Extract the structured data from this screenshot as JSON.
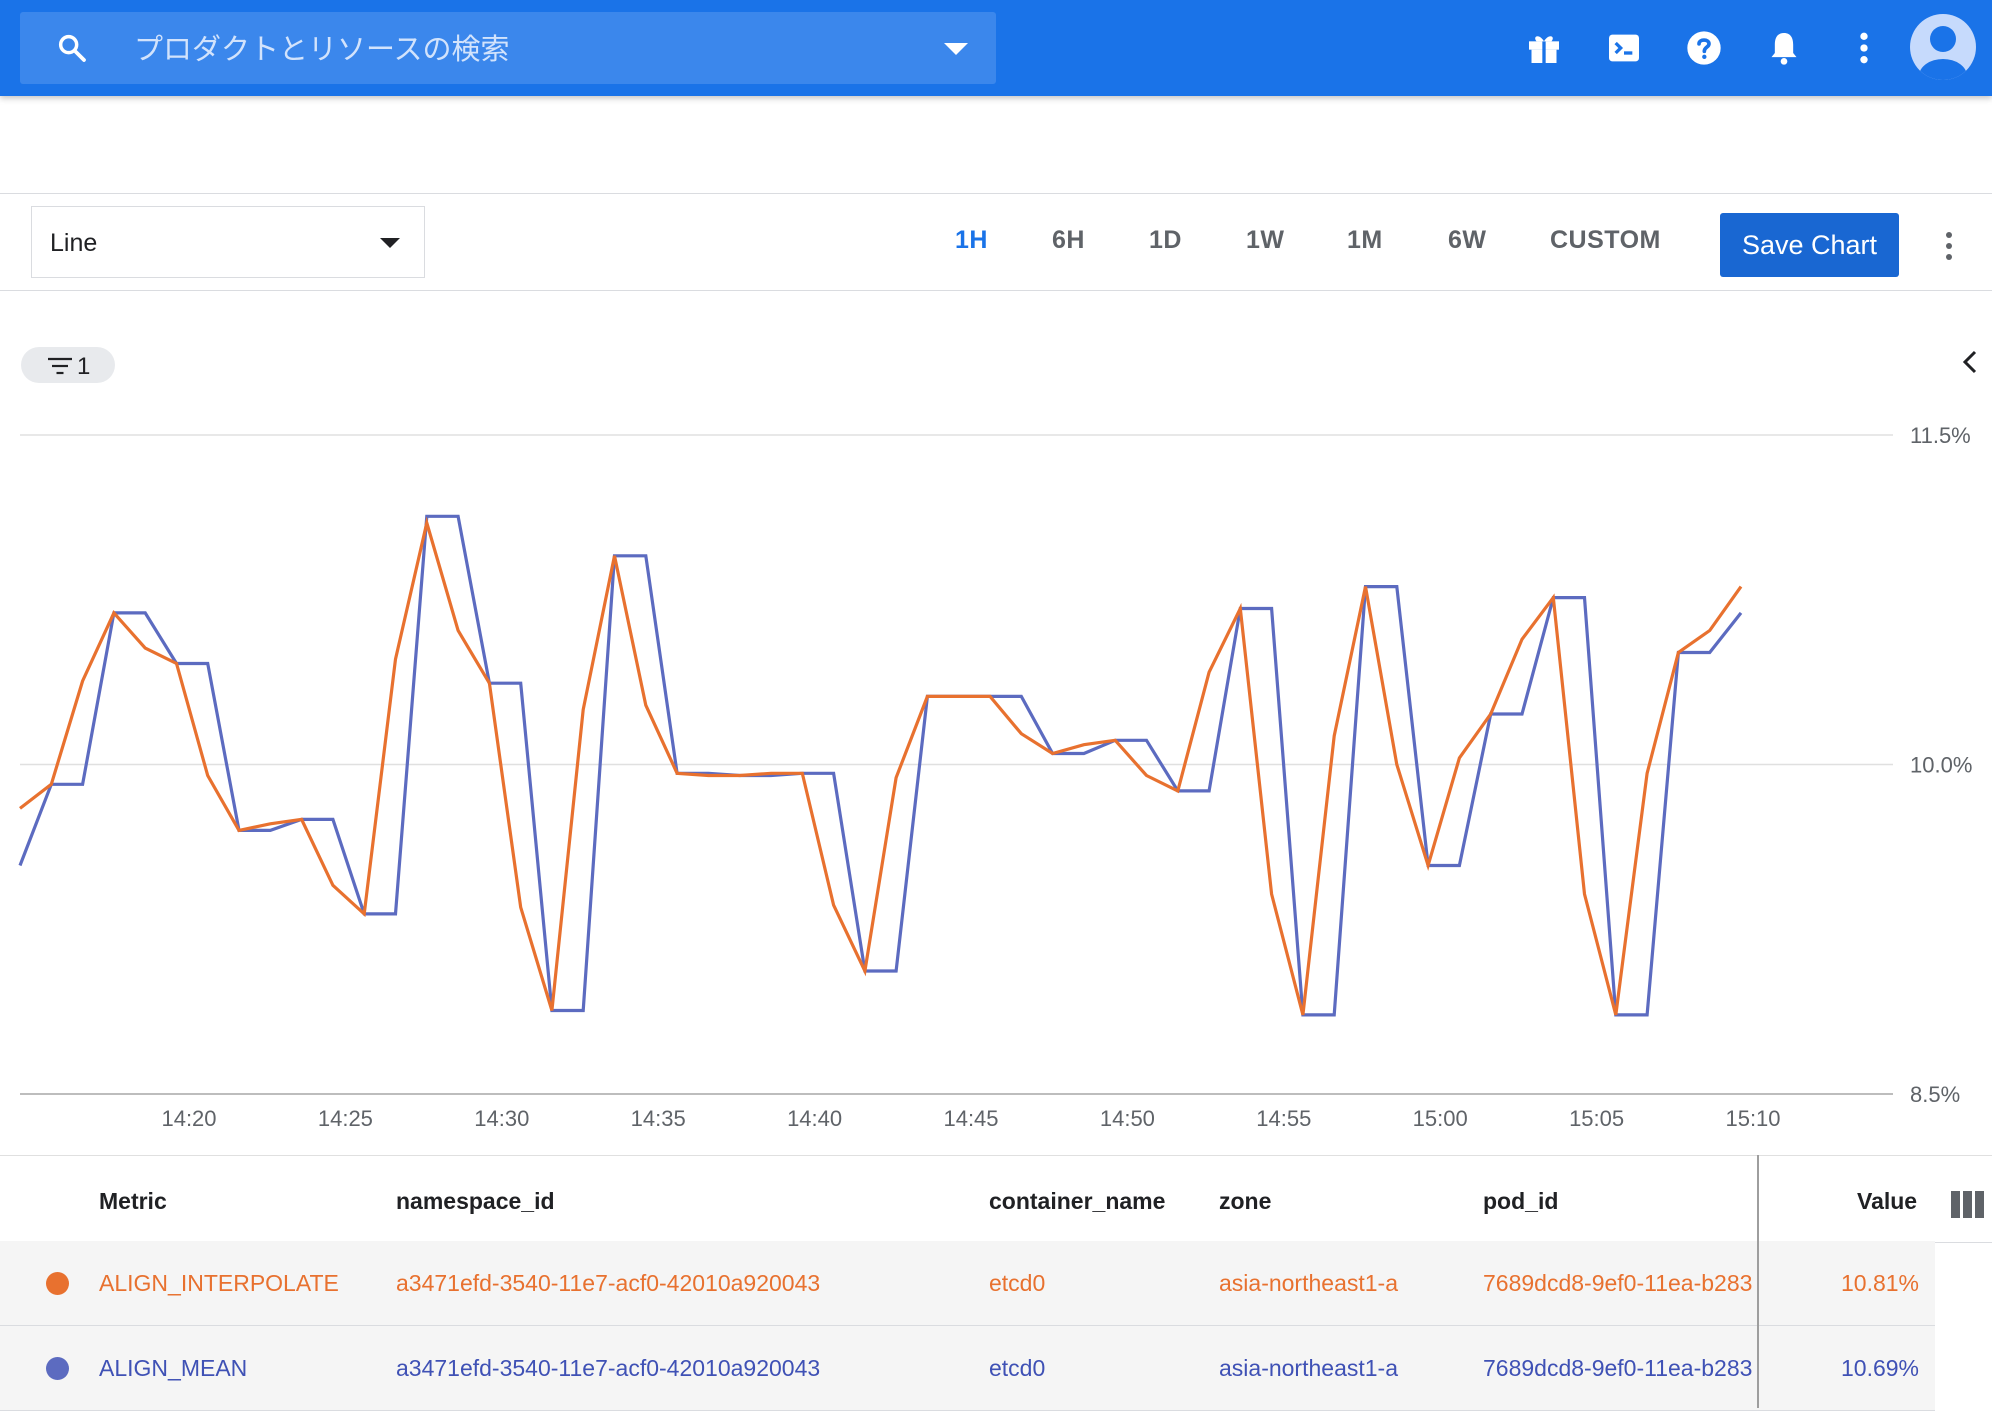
{
  "search": {
    "placeholder": "プロダクトとリソースの検索"
  },
  "topbar_icons": [
    "gift-icon",
    "cloud-shell-icon",
    "help-icon",
    "notifications-icon",
    "more-vert-icon",
    "account-avatar"
  ],
  "toolbar": {
    "chart_type": "Line",
    "ranges": [
      "1H",
      "6H",
      "1D",
      "1W",
      "1M",
      "6W",
      "CUSTOM"
    ],
    "active_range": "1H",
    "save_label": "Save Chart"
  },
  "filter": {
    "count": "1"
  },
  "colors": {
    "interpolate": "#e8712f",
    "mean": "#5c6bc0",
    "accent": "#1a73e8"
  },
  "chart_data": {
    "type": "line",
    "x_ticks": [
      "14:20",
      "14:25",
      "14:30",
      "14:35",
      "14:40",
      "14:45",
      "14:50",
      "14:55",
      "15:00",
      "15:05",
      "15:10"
    ],
    "y_ticks": [
      "11.5%",
      "10.0%",
      "8.5%"
    ],
    "ylim": [
      8.5,
      11.5
    ],
    "grid": true,
    "series": [
      {
        "name": "ALIGN_INTERPOLATE",
        "points": [
          [
            0,
            9.8
          ],
          [
            1,
            9.91
          ],
          [
            2,
            10.38
          ],
          [
            3,
            10.69
          ],
          [
            4,
            10.53
          ],
          [
            5,
            10.46
          ],
          [
            6,
            9.95
          ],
          [
            7,
            9.7
          ],
          [
            8,
            9.73
          ],
          [
            9,
            9.75
          ],
          [
            10,
            9.45
          ],
          [
            11,
            9.32
          ],
          [
            12,
            10.48
          ],
          [
            13,
            11.1
          ],
          [
            14,
            10.61
          ],
          [
            15,
            10.37
          ],
          [
            16,
            9.35
          ],
          [
            17,
            8.88
          ],
          [
            18,
            10.25
          ],
          [
            19,
            10.95
          ],
          [
            20,
            10.27
          ],
          [
            21,
            9.96
          ],
          [
            22,
            9.95
          ],
          [
            23,
            9.95
          ],
          [
            24,
            9.96
          ],
          [
            25,
            9.96
          ],
          [
            26,
            9.36
          ],
          [
            27,
            9.06
          ],
          [
            28,
            9.94
          ],
          [
            29,
            10.31
          ],
          [
            30,
            10.31
          ],
          [
            31,
            10.31
          ],
          [
            32,
            10.14
          ],
          [
            33,
            10.05
          ],
          [
            34,
            10.09
          ],
          [
            35,
            10.11
          ],
          [
            36,
            9.95
          ],
          [
            37,
            9.88
          ],
          [
            38,
            10.42
          ],
          [
            39,
            10.71
          ],
          [
            40,
            9.41
          ],
          [
            41,
            8.86
          ],
          [
            42,
            10.13
          ],
          [
            43,
            10.81
          ],
          [
            44,
            10.0
          ],
          [
            45,
            9.54
          ],
          [
            46,
            10.03
          ],
          [
            47,
            10.23
          ],
          [
            48,
            10.57
          ],
          [
            49,
            10.76
          ],
          [
            50,
            9.41
          ],
          [
            51,
            8.86
          ],
          [
            52,
            9.96
          ],
          [
            53,
            10.51
          ],
          [
            54,
            10.61
          ],
          [
            55,
            10.81
          ]
        ]
      },
      {
        "name": "ALIGN_MEAN",
        "points": [
          [
            0,
            9.54
          ],
          [
            1,
            9.91
          ],
          [
            2,
            9.91
          ],
          [
            3,
            10.69
          ],
          [
            4,
            10.69
          ],
          [
            5,
            10.46
          ],
          [
            6,
            10.46
          ],
          [
            7,
            9.7
          ],
          [
            8,
            9.7
          ],
          [
            9,
            9.75
          ],
          [
            10,
            9.75
          ],
          [
            11,
            9.32
          ],
          [
            12,
            9.32
          ],
          [
            13,
            11.13
          ],
          [
            14,
            11.13
          ],
          [
            15,
            10.37
          ],
          [
            16,
            10.37
          ],
          [
            17,
            8.88
          ],
          [
            18,
            8.88
          ],
          [
            19,
            10.95
          ],
          [
            20,
            10.95
          ],
          [
            21,
            9.96
          ],
          [
            22,
            9.96
          ],
          [
            23,
            9.95
          ],
          [
            24,
            9.95
          ],
          [
            25,
            9.96
          ],
          [
            26,
            9.96
          ],
          [
            27,
            9.06
          ],
          [
            28,
            9.06
          ],
          [
            29,
            10.31
          ],
          [
            30,
            10.31
          ],
          [
            31,
            10.31
          ],
          [
            32,
            10.31
          ],
          [
            33,
            10.05
          ],
          [
            34,
            10.05
          ],
          [
            35,
            10.11
          ],
          [
            36,
            10.11
          ],
          [
            37,
            9.88
          ],
          [
            38,
            9.88
          ],
          [
            39,
            10.71
          ],
          [
            40,
            10.71
          ],
          [
            41,
            8.86
          ],
          [
            42,
            8.86
          ],
          [
            43,
            10.81
          ],
          [
            44,
            10.81
          ],
          [
            45,
            9.54
          ],
          [
            46,
            9.54
          ],
          [
            47,
            10.23
          ],
          [
            48,
            10.23
          ],
          [
            49,
            10.76
          ],
          [
            50,
            10.76
          ],
          [
            51,
            8.86
          ],
          [
            52,
            8.86
          ],
          [
            53,
            10.51
          ],
          [
            54,
            10.51
          ],
          [
            55,
            10.69
          ]
        ]
      }
    ]
  },
  "table": {
    "headers": {
      "metric": "Metric",
      "namespace_id": "namespace_id",
      "container_name": "container_name",
      "zone": "zone",
      "pod_id": "pod_id",
      "value": "Value"
    },
    "rows": [
      {
        "metric": "ALIGN_INTERPOLATE",
        "namespace_id": "a3471efd-3540-11e7-acf0-42010a920043",
        "container_name": "etcd0",
        "zone": "asia-northeast1-a",
        "pod_id": "7689dcd8-9ef0-11ea-b283",
        "value": "10.81%"
      },
      {
        "metric": "ALIGN_MEAN",
        "namespace_id": "a3471efd-3540-11e7-acf0-42010a920043",
        "container_name": "etcd0",
        "zone": "asia-northeast1-a",
        "pod_id": "7689dcd8-9ef0-11ea-b283",
        "value": "10.69%"
      }
    ]
  }
}
